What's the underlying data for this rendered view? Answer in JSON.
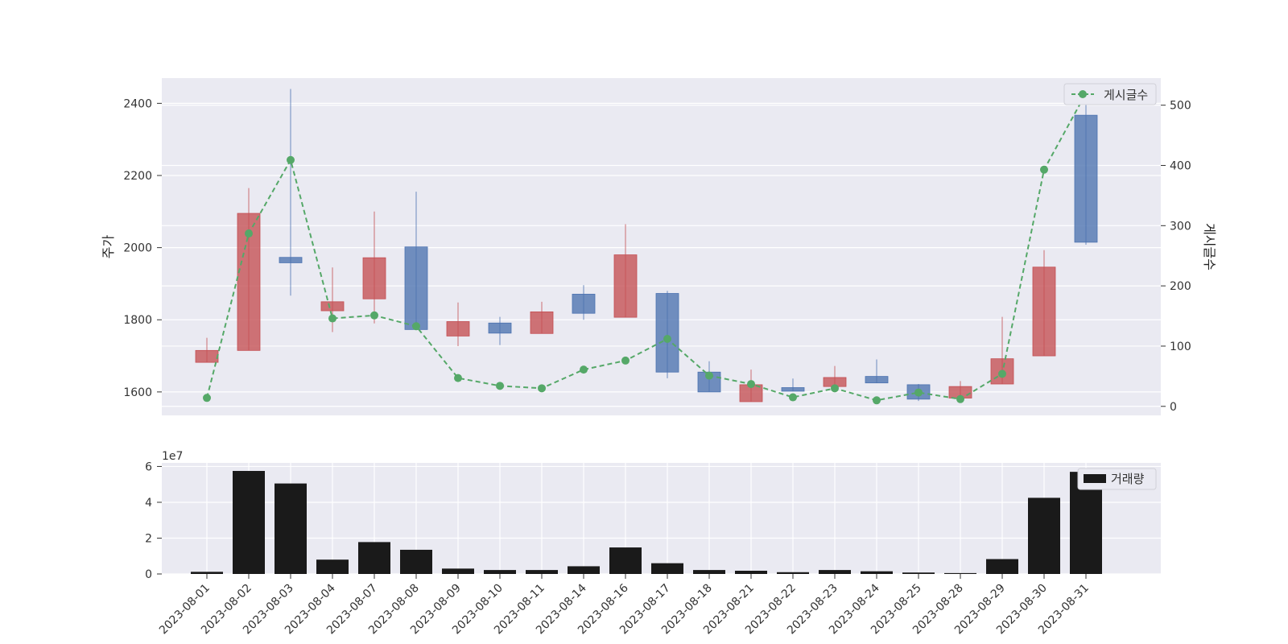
{
  "chart_data": [
    {
      "type": "candlestick",
      "ylabel": "주가",
      "y2label": "게시글수",
      "ylim": [
        1535,
        2470
      ],
      "y2lim": [
        -15,
        545
      ],
      "yticks": [
        1600,
        1800,
        2000,
        2200,
        2400
      ],
      "y2ticks": [
        0,
        100,
        200,
        300,
        400,
        500
      ],
      "grid": true,
      "legend": {
        "position": "top-right",
        "label": "게시글수"
      },
      "colors": {
        "up": "#c44e52",
        "down": "#4c72b0",
        "posts": "#55a868",
        "background": "#eaeaf2",
        "grid": "#ffffff"
      },
      "categories": [
        "2023-08-01",
        "2023-08-02",
        "2023-08-03",
        "2023-08-04",
        "2023-08-07",
        "2023-08-08",
        "2023-08-09",
        "2023-08-10",
        "2023-08-11",
        "2023-08-14",
        "2023-08-16",
        "2023-08-17",
        "2023-08-18",
        "2023-08-21",
        "2023-08-22",
        "2023-08-23",
        "2023-08-24",
        "2023-08-25",
        "2023-08-28",
        "2023-08-29",
        "2023-08-30",
        "2023-08-31"
      ],
      "candles": [
        {
          "open": 1715,
          "close": 1682,
          "high": 1750,
          "low": 1682
        },
        {
          "open": 2095,
          "close": 1715,
          "high": 2165,
          "low": 1715
        },
        {
          "open": 1958,
          "close": 1973,
          "high": 2440,
          "low": 1867
        },
        {
          "open": 1850,
          "close": 1825,
          "high": 1945,
          "low": 1766
        },
        {
          "open": 1972,
          "close": 1858,
          "high": 2100,
          "low": 1790
        },
        {
          "open": 1773,
          "close": 2002,
          "high": 2155,
          "low": 1773
        },
        {
          "open": 1795,
          "close": 1755,
          "high": 1848,
          "low": 1727
        },
        {
          "open": 1763,
          "close": 1791,
          "high": 1808,
          "low": 1730
        },
        {
          "open": 1822,
          "close": 1762,
          "high": 1850,
          "low": 1762
        },
        {
          "open": 1818,
          "close": 1871,
          "high": 1896,
          "low": 1800
        },
        {
          "open": 1980,
          "close": 1807,
          "high": 2065,
          "low": 1807
        },
        {
          "open": 1655,
          "close": 1873,
          "high": 1880,
          "low": 1638
        },
        {
          "open": 1600,
          "close": 1655,
          "high": 1685,
          "low": 1600
        },
        {
          "open": 1620,
          "close": 1573,
          "high": 1662,
          "low": 1573
        },
        {
          "open": 1602,
          "close": 1612,
          "high": 1637,
          "low": 1602
        },
        {
          "open": 1640,
          "close": 1615,
          "high": 1672,
          "low": 1615
        },
        {
          "open": 1625,
          "close": 1643,
          "high": 1690,
          "low": 1625
        },
        {
          "open": 1580,
          "close": 1620,
          "high": 1622,
          "low": 1575
        },
        {
          "open": 1615,
          "close": 1583,
          "high": 1630,
          "low": 1583
        },
        {
          "open": 1692,
          "close": 1622,
          "high": 1808,
          "low": 1622
        },
        {
          "open": 1946,
          "close": 1700,
          "high": 1993,
          "low": 1700
        },
        {
          "open": 2015,
          "close": 2367,
          "high": 2400,
          "low": 2008
        }
      ],
      "series": [
        {
          "name": "게시글수",
          "values": [
            14,
            287,
            409,
            146,
            151,
            133,
            47,
            34,
            30,
            61,
            76,
            112,
            51,
            37,
            15,
            30,
            10,
            23,
            12,
            54,
            393,
            520
          ]
        }
      ]
    },
    {
      "type": "bar",
      "scale_label": "1e7",
      "ylim": [
        0,
        6.2
      ],
      "yticks": [
        0,
        2,
        4,
        6
      ],
      "grid": true,
      "legend": {
        "position": "top-right",
        "label": "거래량"
      },
      "colors": {
        "bar": "#1a1a1a",
        "background": "#eaeaf2",
        "grid": "#ffffff"
      },
      "series": [
        {
          "name": "거래량",
          "values": [
            0.12,
            5.75,
            5.05,
            0.8,
            1.78,
            1.35,
            0.3,
            0.22,
            0.22,
            0.43,
            1.48,
            0.6,
            0.22,
            0.18,
            0.1,
            0.22,
            0.15,
            0.08,
            0.05,
            0.83,
            4.25,
            5.7
          ]
        }
      ]
    }
  ]
}
